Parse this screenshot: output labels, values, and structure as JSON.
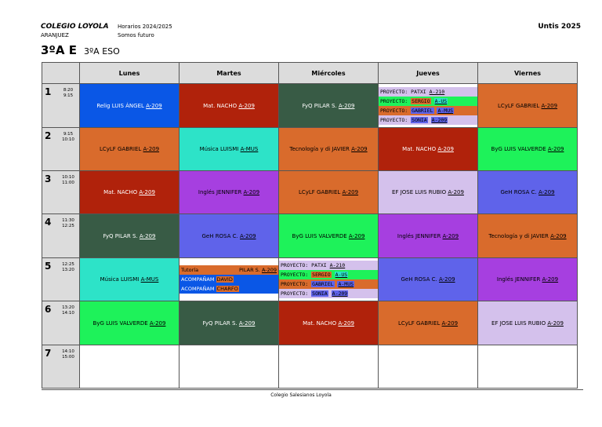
{
  "header": {
    "school": "COLEGIO LOYOLA",
    "town": "ARANJUEZ",
    "schedule": "Horarios 2024/2025",
    "motto": "Somos futuro",
    "untis": "Untis 2025",
    "class_code": "3ºA E",
    "class_name": "3ºA ESO"
  },
  "days": [
    "Lunes",
    "Martes",
    "Miércoles",
    "Jueves",
    "Viernes"
  ],
  "periods": [
    {
      "num": "1",
      "start": "8:20",
      "end": "9:15"
    },
    {
      "num": "2",
      "start": "9:15",
      "end": "10:10"
    },
    {
      "num": "3",
      "start": "10:10",
      "end": "11:00"
    },
    {
      "num": "4",
      "start": "11:30",
      "end": "12:25"
    },
    {
      "num": "5",
      "start": "12:25",
      "end": "13:20"
    },
    {
      "num": "6",
      "start": "13:20",
      "end": "14:10"
    },
    {
      "num": "7",
      "start": "14:10",
      "end": "15:00"
    }
  ],
  "cells": {
    "p1": {
      "lunes": {
        "text": "Relig LUIS ÁNGEL",
        "room": "A-209",
        "color": "#0a57e6"
      },
      "martes": {
        "text": "Mat. NACHO",
        "room": "A-209",
        "color": "#b0220b"
      },
      "miercoles": {
        "text": "FyQ PILAR S.",
        "room": "A-209",
        "color": "#385b45"
      },
      "jueves": {
        "lines": [
          {
            "label": "PROYECTO:",
            "teacher": "PATXI",
            "room": "A-210"
          },
          {
            "label": "PROYECTO:",
            "teacher": "SERGIO",
            "room": "A-US"
          },
          {
            "label": "PROYECTO:",
            "teacher": "GABRIEL",
            "room": "A-MUS"
          },
          {
            "label": "PROYECTO:",
            "teacher": "SONIA",
            "room": "A-209"
          }
        ]
      },
      "viernes": {
        "text": "LCyLF GABRIEL",
        "room": "A-209",
        "color": "#d96b2c"
      }
    },
    "p2": {
      "lunes": {
        "text": "LCyLF GABRIEL",
        "room": "A-209",
        "color": "#d96b2c"
      },
      "martes": {
        "text": "Música LUISMI",
        "room": "A-MUS",
        "color": "#2de3c8"
      },
      "miercoles": {
        "text": "Tecnología y di JAVIER",
        "room": "A-209",
        "color": "#d96b2c"
      },
      "jueves": {
        "text": "Mat. NACHO",
        "room": "A-209",
        "color": "#b0220b"
      },
      "viernes": {
        "text": "ByG LUIS VALVERDE",
        "room": "A-209",
        "color": "#1ef25a"
      }
    },
    "p3": {
      "lunes": {
        "text": "Mat. NACHO",
        "room": "A-209",
        "color": "#b0220b"
      },
      "martes": {
        "text": "Inglés JENNIFER",
        "room": "A-209",
        "color": "#a63fe0"
      },
      "miercoles": {
        "text": "LCyLF GABRIEL",
        "room": "A-209",
        "color": "#d96b2c"
      },
      "jueves": {
        "text": "EF JOSE LUIS RUBIO",
        "room": "A-209",
        "color": "#d4c1ec"
      },
      "viernes": {
        "text": "GeH ROSA C.",
        "room": "A-209",
        "color": "#5f63ea"
      }
    },
    "p4": {
      "lunes": {
        "text": "FyQ PILAR S.",
        "room": "A-209",
        "color": "#385b45"
      },
      "martes": {
        "text": "GeH ROSA C.",
        "room": "A-209",
        "color": "#5f63ea"
      },
      "miercoles": {
        "text": "ByG LUIS VALVERDE",
        "room": "A-209",
        "color": "#1ef25a"
      },
      "jueves": {
        "text": "Inglés JENNIFER",
        "room": "A-209",
        "color": "#a63fe0"
      },
      "viernes": {
        "text": "Tecnología y di JAVIER",
        "room": "A-209",
        "color": "#d96b2c"
      }
    },
    "p5": {
      "lunes": {
        "text": "Música LUISMI",
        "room": "A-MUS",
        "color": "#2de3c8"
      },
      "martes": {
        "tutoria": "Tutoría",
        "tutor": "PILAR S.",
        "room": "A-209",
        "acomp": "ACOMPAÑAM",
        "acomp1": "DAVID",
        "acomp2": "CHARFO"
      },
      "miercoles": {
        "lines": [
          {
            "label": "PROYECTO:",
            "teacher": "PATXI",
            "room": "A-210"
          },
          {
            "label": "PROYECTO:",
            "teacher": "SERGIO",
            "room": "A-US"
          },
          {
            "label": "PROYECTO:",
            "teacher": "GABRIEL",
            "room": "A-MUS"
          },
          {
            "label": "PROYECTO:",
            "teacher": "SONIA",
            "room": "A-209"
          }
        ]
      },
      "jueves": {
        "text": "GeH ROSA C.",
        "room": "A-209",
        "color": "#5f63ea"
      },
      "viernes": {
        "text": "Inglés JENNIFER",
        "room": "A-209",
        "color": "#a63fe0"
      }
    },
    "p6": {
      "lunes": {
        "text": "ByG LUIS VALVERDE",
        "room": "A-209",
        "color": "#1ef25a"
      },
      "martes": {
        "text": "FyQ PILAR S.",
        "room": "A-209",
        "color": "#385b45"
      },
      "miercoles": {
        "text": "Mat. NACHO",
        "room": "A-209",
        "color": "#b0220b"
      },
      "jueves": {
        "text": "LCyLF GABRIEL",
        "room": "A-209",
        "color": "#d96b2c"
      },
      "viernes": {
        "text": "EF JOSE LUIS RUBIO",
        "room": "A-209",
        "color": "#d4c1ec"
      }
    }
  },
  "footer": "Colegio Salesianos Loyola"
}
